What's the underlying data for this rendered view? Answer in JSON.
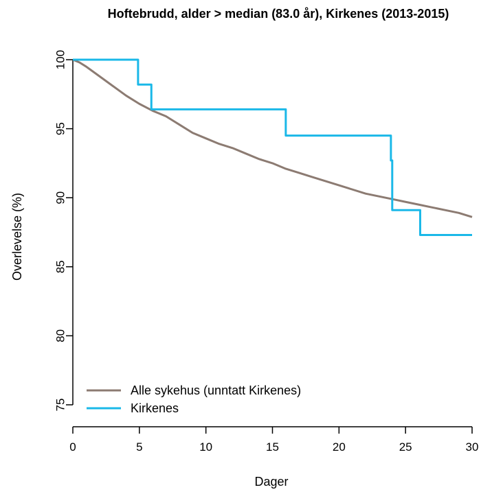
{
  "chart_data": {
    "type": "line",
    "title": "Hoftebrudd, alder > median (83.0 år), Kirkenes (2013-2015)",
    "xlabel": "Dager",
    "ylabel": "Overlevelse (%)",
    "xlim": [
      0,
      30
    ],
    "ylim": [
      75,
      100
    ],
    "xticks": [
      0,
      5,
      10,
      15,
      20,
      25,
      30
    ],
    "yticks": [
      75,
      80,
      85,
      90,
      95,
      100
    ],
    "grid": false,
    "legend_position": "bottom-left",
    "series": [
      {
        "name": "Alle sykehus (unntatt Kirkenes)",
        "color": "#8c7b72",
        "step": false,
        "x": [
          0,
          0.5,
          1,
          2,
          3,
          4,
          5,
          6,
          7,
          8,
          9,
          10,
          11,
          12,
          13,
          14,
          15,
          16,
          17,
          18,
          19,
          20,
          21,
          22,
          23,
          24,
          25,
          26,
          27,
          28,
          29,
          30
        ],
        "y": [
          100,
          99.8,
          99.5,
          98.8,
          98.1,
          97.4,
          96.8,
          96.3,
          95.9,
          95.3,
          94.7,
          94.3,
          93.9,
          93.6,
          93.2,
          92.8,
          92.5,
          92.1,
          91.8,
          91.5,
          91.2,
          90.9,
          90.6,
          90.3,
          90.1,
          89.9,
          89.7,
          89.5,
          89.3,
          89.1,
          88.9,
          88.6
        ]
      },
      {
        "name": "Kirkenes",
        "color": "#1ab8e8",
        "step": true,
        "x": [
          0,
          4.9,
          5.9,
          16.0,
          23.9,
          24.0,
          26.1,
          30
        ],
        "y": [
          100,
          98.2,
          96.4,
          94.5,
          92.7,
          89.1,
          87.3,
          87.3
        ]
      }
    ]
  }
}
